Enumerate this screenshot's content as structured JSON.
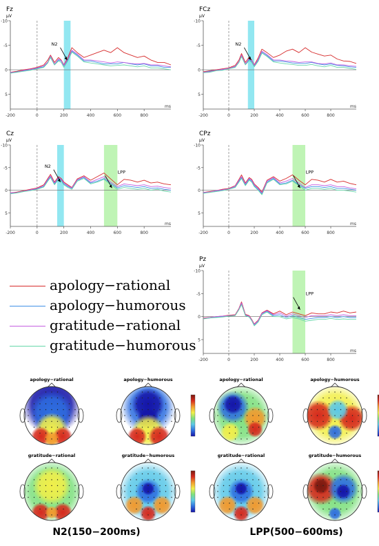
{
  "chart_data": {
    "type": "line",
    "x_unit": "ms",
    "y_unit": "μV",
    "xlim": [
      -200,
      1000
    ],
    "ylim": [
      -10,
      8
    ],
    "x_ticks": [
      "-200",
      "0",
      "200",
      "400",
      "600",
      "800"
    ],
    "y_ticks": [
      "-10",
      "-5",
      "0",
      "5"
    ],
    "series_colors": {
      "apology-rational": "#d62a2a",
      "apology-humorous": "#3f8fe6",
      "gratitude-rational": "#c45ee0",
      "gratitude-humorous": "#63d6a8"
    },
    "x": [
      -200,
      -150,
      -100,
      -50,
      0,
      50,
      80,
      100,
      130,
      160,
      180,
      200,
      230,
      260,
      300,
      350,
      400,
      450,
      500,
      550,
      600,
      650,
      700,
      750,
      800,
      850,
      900,
      950,
      1000
    ],
    "panels": [
      {
        "label": "Fz",
        "windows": [
          {
            "range": [
              200,
              250
            ],
            "color": "#7fe3ee"
          }
        ],
        "annotations": [
          {
            "text": "N2",
            "x": 225,
            "y": -2
          }
        ],
        "series": [
          {
            "name": "apology-rational",
            "values": [
              0.5,
              0.3,
              0,
              -0.2,
              -0.5,
              -1,
              -2,
              -3,
              -1.5,
              -2.5,
              -2,
              -1,
              -2.5,
              -4.5,
              -3.5,
              -2.5,
              -3,
              -3.5,
              -4,
              -3.5,
              -4.5,
              -3.5,
              -3,
              -2.5,
              -2.8,
              -2,
              -1.5,
              -1.5,
              -1
            ]
          },
          {
            "name": "apology-humorous",
            "values": [
              0.6,
              0.4,
              0.2,
              0,
              -0.3,
              -0.6,
              -1.5,
              -2.5,
              -1,
              -2,
              -1.8,
              -0.8,
              -2,
              -3.8,
              -3,
              -1.8,
              -1.8,
              -1.5,
              -1.2,
              -1.2,
              -1.2,
              -1.5,
              -1.2,
              -1,
              -1.2,
              -0.8,
              -0.8,
              -0.5,
              -0.5
            ]
          },
          {
            "name": "gratitude-rational",
            "values": [
              0.5,
              0.5,
              0.1,
              -0.1,
              -0.4,
              -0.8,
              -1.6,
              -2.8,
              -1.2,
              -2.2,
              -1.9,
              -0.9,
              -2.2,
              -4,
              -3.2,
              -2,
              -2,
              -1.8,
              -1.6,
              -1.4,
              -1.6,
              -1.5,
              -1.3,
              -1.2,
              -1.3,
              -1,
              -1,
              -0.8,
              -0.6
            ]
          },
          {
            "name": "gratitude-humorous",
            "values": [
              0.7,
              0.5,
              0.3,
              0.1,
              -0.2,
              -0.5,
              -1.4,
              -2.6,
              -1,
              -1.8,
              -1.5,
              -0.5,
              -1.8,
              -3.6,
              -2.8,
              -1.6,
              -1.4,
              -1.2,
              -1,
              -0.8,
              -0.9,
              -1,
              -0.8,
              -0.6,
              -0.8,
              -0.4,
              -0.4,
              -0.2,
              0
            ]
          }
        ]
      },
      {
        "label": "FCz",
        "windows": [
          {
            "range": [
              150,
              200
            ],
            "color": "#7fe3ee"
          }
        ],
        "annotations": [
          {
            "text": "N2",
            "x": 175,
            "y": -2
          }
        ],
        "series": [
          {
            "name": "apology-rational",
            "values": [
              0.4,
              0.2,
              0,
              -0.2,
              -0.4,
              -0.9,
              -2,
              -3.3,
              -1.5,
              -2.6,
              -2,
              -1,
              -2.4,
              -4.2,
              -3.5,
              -2.5,
              -3,
              -3.8,
              -4.2,
              -3.5,
              -4.5,
              -3.6,
              -3.2,
              -2.8,
              -3,
              -2.2,
              -1.8,
              -1.7,
              -1.3
            ]
          },
          {
            "name": "apology-humorous",
            "values": [
              0.5,
              0.3,
              0.1,
              0,
              -0.3,
              -0.6,
              -1.6,
              -2.8,
              -1.1,
              -2.1,
              -1.7,
              -0.8,
              -1.9,
              -3.6,
              -2.9,
              -1.8,
              -1.8,
              -1.6,
              -1.4,
              -1.3,
              -1.3,
              -1.5,
              -1.2,
              -1,
              -1.2,
              -0.9,
              -0.8,
              -0.6,
              -0.5
            ]
          },
          {
            "name": "gratitude-rational",
            "values": [
              0.5,
              0.4,
              0.1,
              -0.1,
              -0.3,
              -0.7,
              -1.7,
              -3,
              -1.2,
              -2.3,
              -1.9,
              -0.9,
              -2.1,
              -3.8,
              -3.1,
              -2,
              -2,
              -1.8,
              -1.7,
              -1.5,
              -1.6,
              -1.6,
              -1.3,
              -1.2,
              -1.4,
              -1,
              -1,
              -0.8,
              -0.7
            ]
          },
          {
            "name": "gratitude-humorous",
            "values": [
              0.6,
              0.5,
              0.2,
              0.1,
              -0.2,
              -0.5,
              -1.5,
              -2.7,
              -1,
              -1.9,
              -1.5,
              -0.6,
              -1.7,
              -3.4,
              -2.7,
              -1.6,
              -1.4,
              -1.2,
              -1.1,
              -0.9,
              -0.9,
              -1.1,
              -0.8,
              -0.6,
              -0.9,
              -0.5,
              -0.5,
              -0.3,
              -0.1
            ]
          }
        ]
      },
      {
        "label": "Cz",
        "windows": [
          {
            "range": [
              150,
              200
            ],
            "color": "#7fe3ee"
          },
          {
            "range": [
              500,
              600
            ],
            "color": "#b4f2a8"
          }
        ],
        "annotations": [
          {
            "text": "N2",
            "x": 175,
            "y": -1.8
          },
          {
            "text": "LPP",
            "x": 560,
            "y": -0.5
          }
        ],
        "series": [
          {
            "name": "apology-rational",
            "values": [
              0.6,
              0.4,
              0.1,
              -0.2,
              -0.5,
              -1.2,
              -2.6,
              -3.5,
              -1.8,
              -3,
              -2.6,
              -1.8,
              -1.2,
              -0.6,
              -2.5,
              -3.2,
              -2.2,
              -3,
              -3.8,
              -2.5,
              -1.2,
              -2.4,
              -2.2,
              -1.8,
              -2.2,
              -1.6,
              -1.8,
              -1.4,
              -1.2
            ]
          },
          {
            "name": "apology-humorous",
            "values": [
              0.7,
              0.5,
              0.2,
              0,
              -0.3,
              -0.8,
              -2.2,
              -3,
              -1.4,
              -2.6,
              -2.2,
              -1.4,
              -0.8,
              -0.4,
              -2.2,
              -2.8,
              -1.6,
              -2,
              -2.6,
              -1.5,
              -0.5,
              -1,
              -0.8,
              -0.6,
              -0.8,
              -0.4,
              -0.5,
              -0.2,
              0
            ]
          },
          {
            "name": "gratitude-rational",
            "values": [
              0.6,
              0.5,
              0.2,
              -0.1,
              -0.4,
              -1,
              -2.4,
              -3.2,
              -1.6,
              -2.8,
              -2.4,
              -1.6,
              -1,
              -0.5,
              -2.3,
              -3,
              -1.8,
              -2.4,
              -3,
              -1.8,
              -0.8,
              -1.4,
              -1.2,
              -1,
              -1.2,
              -0.8,
              -0.9,
              -0.6,
              -0.4
            ]
          },
          {
            "name": "gratitude-humorous",
            "values": [
              0.8,
              0.6,
              0.3,
              0.1,
              -0.2,
              -0.7,
              -2,
              -2.8,
              -1.2,
              -2.4,
              -2,
              -1.2,
              -0.6,
              -0.2,
              -2,
              -2.6,
              -1.4,
              -1.8,
              -2.4,
              -1.2,
              -0.2,
              -0.6,
              -0.4,
              -0.2,
              -0.4,
              0,
              -0.2,
              0.2,
              0.4
            ]
          }
        ]
      },
      {
        "label": "CPz",
        "windows": [
          {
            "range": [
              500,
              600
            ],
            "color": "#b4f2a8"
          }
        ],
        "annotations": [
          {
            "text": "LPP",
            "x": 560,
            "y": -0.5
          }
        ],
        "series": [
          {
            "name": "apology-rational",
            "values": [
              0.5,
              0.3,
              0.1,
              -0.2,
              -0.4,
              -1,
              -2.4,
              -3.4,
              -1.6,
              -2.8,
              -2.4,
              -1.4,
              -0.6,
              0.4,
              -2.2,
              -3,
              -2,
              -2.6,
              -3.4,
              -2.2,
              -1.2,
              -2.4,
              -2.2,
              -1.8,
              -2.4,
              -1.8,
              -2,
              -1.5,
              -1.2
            ]
          },
          {
            "name": "apology-humorous",
            "values": [
              0.6,
              0.4,
              0.2,
              0,
              -0.3,
              -0.7,
              -2,
              -2.8,
              -1.2,
              -2.4,
              -2,
              -1,
              -0.2,
              0.8,
              -1.8,
              -2.6,
              -1.4,
              -1.6,
              -2.2,
              -1.2,
              -0.4,
              -0.8,
              -0.8,
              -0.6,
              -0.8,
              -0.4,
              -0.4,
              -0.2,
              0
            ]
          },
          {
            "name": "gratitude-rational",
            "values": [
              0.5,
              0.4,
              0.1,
              -0.1,
              -0.3,
              -0.9,
              -2.2,
              -3,
              -1.4,
              -2.6,
              -2.2,
              -1.2,
              -0.4,
              0.6,
              -2,
              -2.8,
              -1.6,
              -2,
              -2.6,
              -1.6,
              -0.6,
              -1.2,
              -1.2,
              -1,
              -1.2,
              -0.8,
              -0.8,
              -0.5,
              -0.3
            ]
          },
          {
            "name": "gratitude-humorous",
            "values": [
              0.7,
              0.5,
              0.3,
              0.1,
              -0.2,
              -0.6,
              -1.8,
              -2.6,
              -1,
              -2.2,
              -1.8,
              -0.8,
              0,
              1,
              -1.6,
              -2.4,
              -1.2,
              -1.4,
              -2,
              -1,
              0,
              -0.4,
              -0.4,
              -0.2,
              -0.4,
              0,
              0,
              0.2,
              0.4
            ]
          }
        ]
      },
      {
        "label": "Pz",
        "windows": [
          {
            "range": [
              500,
              600
            ],
            "color": "#b4f2a8"
          }
        ],
        "annotations": [
          {
            "text": "LPP",
            "x": 560,
            "y": -1.5
          }
        ],
        "series": [
          {
            "name": "apology-rational",
            "values": [
              0.3,
              0.2,
              0,
              -0.1,
              -0.3,
              -0.4,
              -1.8,
              -3.2,
              -0.5,
              -0.2,
              0.6,
              1.6,
              0.8,
              -0.8,
              -1.4,
              -0.6,
              -1.2,
              -0.4,
              -1,
              -0.6,
              -0.2,
              -0.8,
              -0.6,
              -0.6,
              -1,
              -0.8,
              -1.2,
              -0.8,
              -1
            ]
          },
          {
            "name": "apology-humorous",
            "values": [
              0.4,
              0.3,
              0.1,
              0,
              -0.2,
              -0.3,
              -1.6,
              -2.8,
              -0.3,
              0,
              0.8,
              1.8,
              1,
              -0.6,
              -1.2,
              -0.2,
              -0.4,
              0.2,
              -0.2,
              0.2,
              0.6,
              0.4,
              0.2,
              0.2,
              0,
              0.2,
              0,
              0.2,
              0.2
            ]
          },
          {
            "name": "gratitude-rational",
            "values": [
              0.4,
              0.2,
              0,
              -0.1,
              -0.2,
              -0.3,
              -1.7,
              -3,
              -0.4,
              -0.1,
              0.7,
              1.7,
              0.9,
              -0.7,
              -1.3,
              -0.4,
              -0.8,
              -0.1,
              -0.6,
              -0.2,
              0.2,
              -0.2,
              -0.2,
              -0.2,
              -0.4,
              -0.2,
              -0.4,
              -0.2,
              -0.2
            ]
          },
          {
            "name": "gratitude-humorous",
            "values": [
              0.5,
              0.3,
              0.2,
              0.1,
              -0.1,
              -0.2,
              -1.5,
              -2.6,
              -0.2,
              0.1,
              0.9,
              2,
              1.2,
              -0.4,
              -1,
              0,
              0,
              0.5,
              0.2,
              0.5,
              1,
              0.8,
              0.6,
              0.6,
              0.4,
              0.6,
              0.5,
              0.6,
              0.6
            ]
          }
        ]
      }
    ],
    "legend": [
      "apology−rational",
      "apology−humorous",
      "gratitude−rational",
      "gratitude−humorous"
    ],
    "topomaps": {
      "colormap": [
        "#1515a8",
        "#2f6fe0",
        "#5cc8e8",
        "#7ee07e",
        "#f2ef4a",
        "#f29a2e",
        "#d62a1e",
        "#7a1a10"
      ],
      "groups": [
        {
          "title": "N2(150−200ms)",
          "maps": [
            {
              "label": "apology−rational",
              "field": "frontal-negative"
            },
            {
              "label": "apology−humorous",
              "field": "frontal-negative-central"
            },
            {
              "label": "gratitude−rational",
              "field": "mostly-neutral"
            },
            {
              "label": "gratitude−humorous",
              "field": "central-negative"
            }
          ]
        },
        {
          "title": "LPP(500−600ms)",
          "maps": [
            {
              "label": "apology−rational",
              "field": "left-frontal-negative"
            },
            {
              "label": "apology−humorous",
              "field": "lateral-positive"
            },
            {
              "label": "gratitude−rational",
              "field": "central-negative"
            },
            {
              "label": "gratitude−humorous",
              "field": "left-positive"
            }
          ]
        }
      ]
    }
  }
}
